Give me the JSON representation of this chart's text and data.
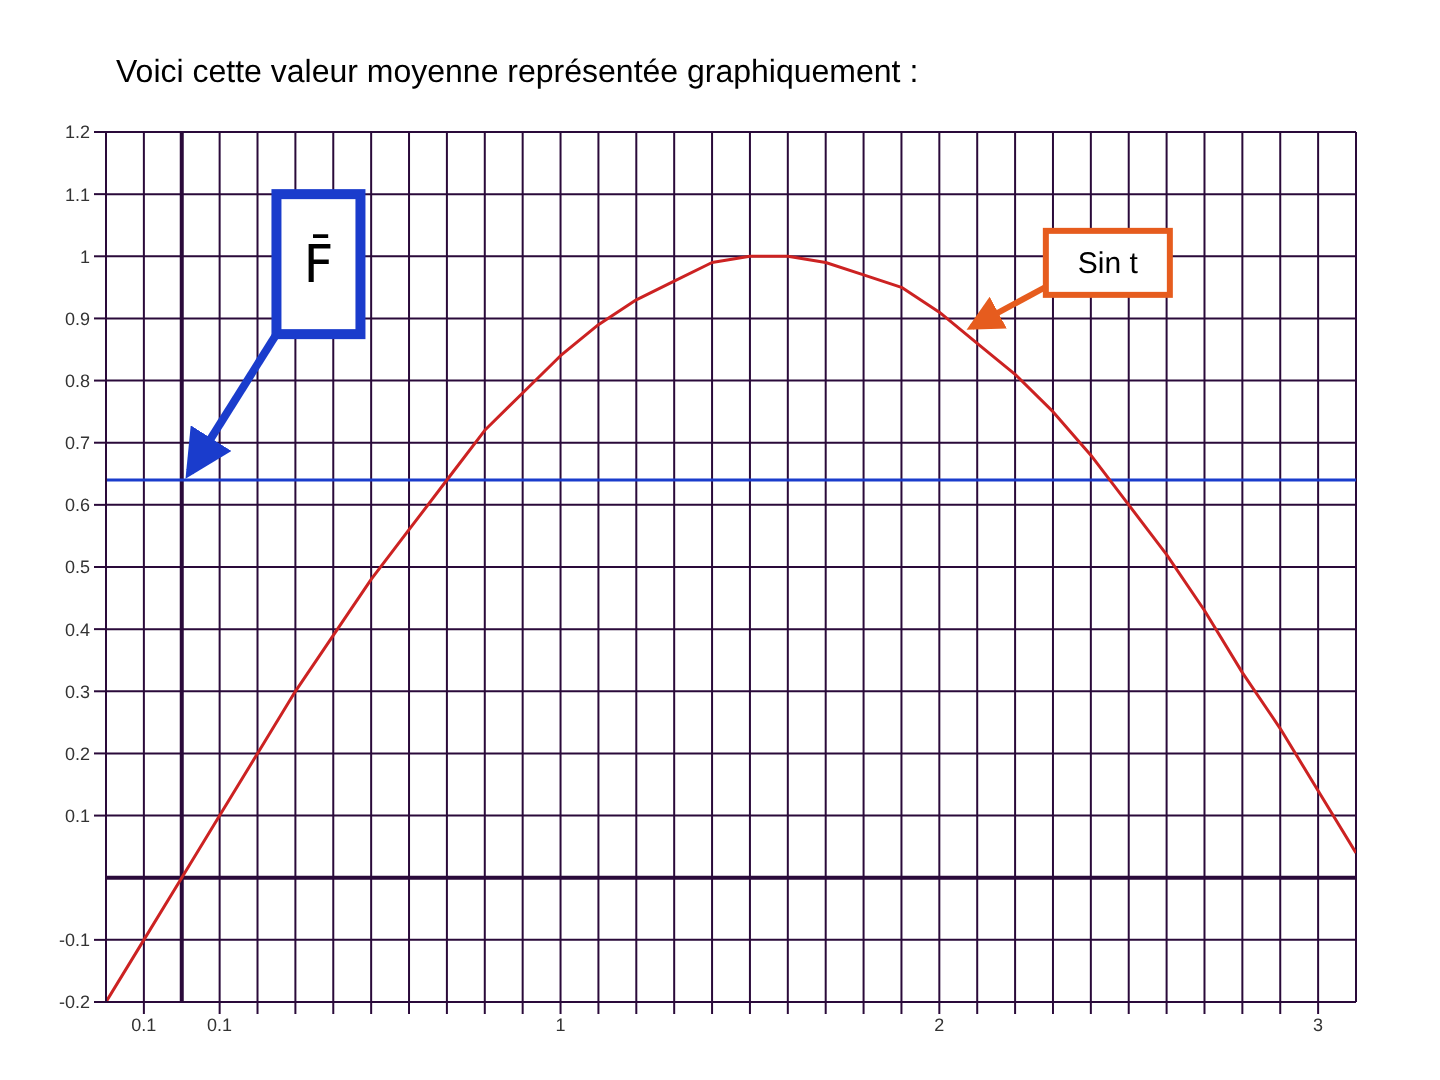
{
  "chart_data": {
    "type": "line",
    "title": "Voici cette valeur moyenne représentée graphiquement :",
    "x": [
      -0.2,
      -0.1,
      0,
      0.1,
      0.2,
      0.3,
      0.4,
      0.5,
      0.6,
      0.7,
      0.8,
      0.9,
      1.0,
      1.1,
      1.2,
      1.3,
      1.4,
      1.5,
      1.6,
      1.7,
      1.8,
      1.9,
      2.0,
      2.1,
      2.2,
      2.3,
      2.4,
      2.5,
      2.6,
      2.7,
      2.8,
      2.9,
      3.0,
      3.1
    ],
    "series": [
      {
        "color": "#cc2222",
        "values": [
          -0.2,
          -0.1,
          0,
          0.1,
          0.2,
          0.3,
          0.39,
          0.48,
          0.56,
          0.64,
          0.72,
          0.78,
          0.84,
          0.89,
          0.93,
          0.96,
          0.99,
          1.0,
          1.0,
          0.99,
          0.97,
          0.95,
          0.91,
          0.86,
          0.81,
          0.75,
          0.68,
          0.6,
          0.52,
          0.43,
          0.33,
          0.24,
          0.14,
          0.04
        ]
      }
    ],
    "xlim": [
      -0.2,
      3.1
    ],
    "xticks": [
      {
        "value": -0.1,
        "label": "0.1"
      },
      0.1,
      {
        "value": 0.2,
        "label": null
      },
      {
        "value": 0.3,
        "label": null
      },
      {
        "value": 0.4,
        "label": null
      },
      {
        "value": 0.5,
        "label": null
      },
      {
        "value": 0.6,
        "label": null
      },
      {
        "value": 0.7,
        "label": null
      },
      {
        "value": 0.8,
        "label": null
      },
      {
        "value": 0.9,
        "label": null
      },
      1,
      {
        "value": 1.1,
        "label": null
      },
      {
        "value": 1.2,
        "label": null
      },
      {
        "value": 1.3,
        "label": null
      },
      {
        "value": 1.4,
        "label": null
      },
      {
        "value": 1.5,
        "label": null
      },
      {
        "value": 1.6,
        "label": null
      },
      {
        "value": 1.7,
        "label": null
      },
      {
        "value": 1.8,
        "label": null
      },
      {
        "value": 1.9,
        "label": null
      },
      2,
      {
        "value": 2.1,
        "label": null
      },
      {
        "value": 2.2,
        "label": null
      },
      {
        "value": 2.3,
        "label": null
      },
      {
        "value": 2.4,
        "label": null
      },
      {
        "value": 2.5,
        "label": null
      },
      {
        "value": 2.6,
        "label": null
      },
      {
        "value": 2.7,
        "label": null
      },
      {
        "value": 2.8,
        "label": null
      },
      {
        "value": 2.9,
        "label": null
      },
      3
    ],
    "ylim": [
      -0.2,
      1.2
    ],
    "yticks": [
      -0.2,
      -0.1,
      0.1,
      0.2,
      0.3,
      0.4,
      0.5,
      0.6,
      0.7,
      0.8,
      0.9,
      1,
      1.1,
      1.2
    ],
    "grid": true,
    "marker": "none",
    "line_style": "solid",
    "ref_lines": [
      {
        "axis": "y",
        "value": 0.64,
        "label": "F̄",
        "color": "#1a3ccc"
      }
    ],
    "annotations": [
      {
        "text": "Sin t",
        "x": 2.07,
        "y": 0.88
      }
    ]
  }
}
